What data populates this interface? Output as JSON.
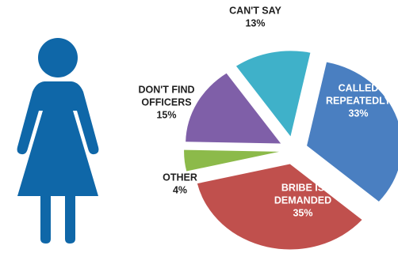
{
  "chart_data": {
    "type": "pie",
    "title": "",
    "slices": [
      {
        "label": [
          "CALLED",
          "REPEATEDLY"
        ],
        "value_label": "33%",
        "value": 33,
        "color": "#4a7fc1",
        "text_color": "#ffffff"
      },
      {
        "label": [
          "BRIBE IS",
          "DEMANDED"
        ],
        "value_label": "35%",
        "value": 35,
        "color": "#c0504d",
        "text_color": "#ffffff"
      },
      {
        "label": [
          "OTHER"
        ],
        "value_label": "4%",
        "value": 4,
        "color": "#8cba4a",
        "text_color": "#1f1f1f"
      },
      {
        "label": [
          "DON'T FIND",
          "OFFICERS"
        ],
        "value_label": "15%",
        "value": 15,
        "color": "#7f5fa8",
        "text_color": "#1f1f1f"
      },
      {
        "label": [
          "CAN'T SAY"
        ],
        "value_label": "13%",
        "value": 13,
        "color": "#3fb1c9",
        "text_color": "#1f1f1f"
      }
    ],
    "legend": "none"
  },
  "figure": {
    "icon": "woman-icon",
    "color": "#0f67a8"
  }
}
